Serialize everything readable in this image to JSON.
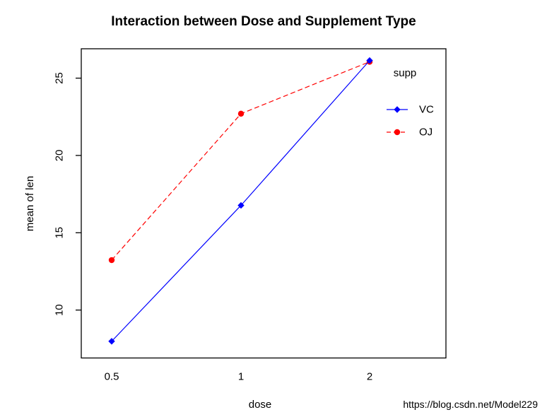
{
  "chart_data": {
    "type": "line",
    "title": "Interaction between Dose and Supplement Type",
    "xlabel": "dose",
    "ylabel": "mean of len",
    "categories": [
      "0.5",
      "1",
      "2"
    ],
    "x_values": [
      0.5,
      1,
      2
    ],
    "yticks": [
      10,
      15,
      20,
      25
    ],
    "ylim": [
      6.9,
      26.9
    ],
    "grid": false,
    "frame_box": true,
    "axis_color": "#000000",
    "legend": {
      "title": "supp",
      "position": "top-right-inside",
      "entries": [
        "VC",
        "OJ"
      ]
    },
    "series": [
      {
        "name": "VC",
        "values": [
          7.98,
          16.77,
          26.14
        ],
        "color": "#0000ff",
        "line_style": "solid",
        "marker": "diamond"
      },
      {
        "name": "OJ",
        "values": [
          13.23,
          22.7,
          26.06
        ],
        "color": "#ff0000",
        "line_style": "dashed",
        "marker": "circle"
      }
    ]
  },
  "watermark": {
    "text": "https://blog.csdn.net/Model229",
    "color": "#e9e9ec"
  }
}
